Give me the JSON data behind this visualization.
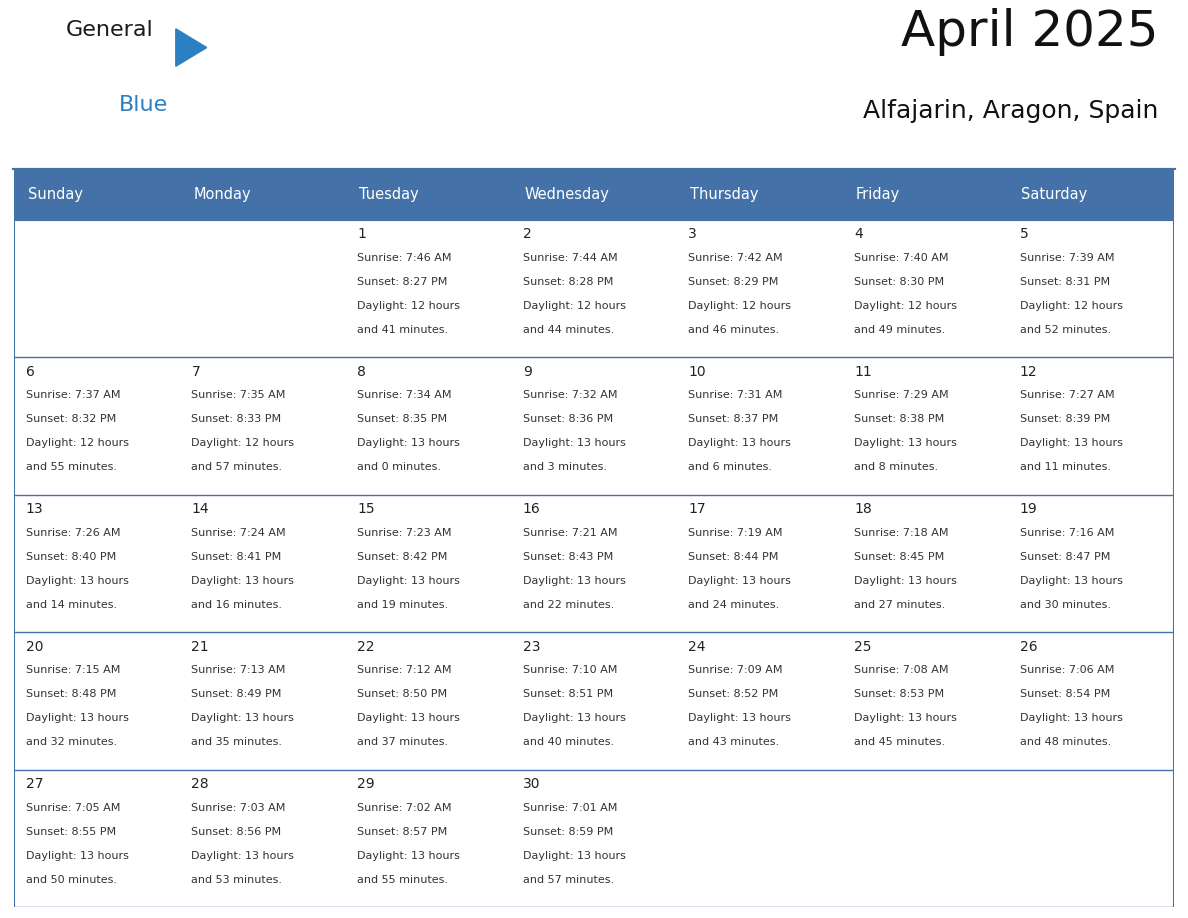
{
  "title": "April 2025",
  "subtitle": "Alfajarin, Aragon, Spain",
  "days_of_week": [
    "Sunday",
    "Monday",
    "Tuesday",
    "Wednesday",
    "Thursday",
    "Friday",
    "Saturday"
  ],
  "header_bg": "#4472A8",
  "header_text": "#FFFFFF",
  "border_color": "#4472A8",
  "text_color": "#333333",
  "calendar_data": [
    [
      {
        "day": "",
        "sunrise": "",
        "sunset": "",
        "daylight": ""
      },
      {
        "day": "",
        "sunrise": "",
        "sunset": "",
        "daylight": ""
      },
      {
        "day": "1",
        "sunrise": "7:46 AM",
        "sunset": "8:27 PM",
        "daylight_h": "12 hours",
        "daylight_m": "and 41 minutes."
      },
      {
        "day": "2",
        "sunrise": "7:44 AM",
        "sunset": "8:28 PM",
        "daylight_h": "12 hours",
        "daylight_m": "and 44 minutes."
      },
      {
        "day": "3",
        "sunrise": "7:42 AM",
        "sunset": "8:29 PM",
        "daylight_h": "12 hours",
        "daylight_m": "and 46 minutes."
      },
      {
        "day": "4",
        "sunrise": "7:40 AM",
        "sunset": "8:30 PM",
        "daylight_h": "12 hours",
        "daylight_m": "and 49 minutes."
      },
      {
        "day": "5",
        "sunrise": "7:39 AM",
        "sunset": "8:31 PM",
        "daylight_h": "12 hours",
        "daylight_m": "and 52 minutes."
      }
    ],
    [
      {
        "day": "6",
        "sunrise": "7:37 AM",
        "sunset": "8:32 PM",
        "daylight_h": "12 hours",
        "daylight_m": "and 55 minutes."
      },
      {
        "day": "7",
        "sunrise": "7:35 AM",
        "sunset": "8:33 PM",
        "daylight_h": "12 hours",
        "daylight_m": "and 57 minutes."
      },
      {
        "day": "8",
        "sunrise": "7:34 AM",
        "sunset": "8:35 PM",
        "daylight_h": "13 hours",
        "daylight_m": "and 0 minutes."
      },
      {
        "day": "9",
        "sunrise": "7:32 AM",
        "sunset": "8:36 PM",
        "daylight_h": "13 hours",
        "daylight_m": "and 3 minutes."
      },
      {
        "day": "10",
        "sunrise": "7:31 AM",
        "sunset": "8:37 PM",
        "daylight_h": "13 hours",
        "daylight_m": "and 6 minutes."
      },
      {
        "day": "11",
        "sunrise": "7:29 AM",
        "sunset": "8:38 PM",
        "daylight_h": "13 hours",
        "daylight_m": "and 8 minutes."
      },
      {
        "day": "12",
        "sunrise": "7:27 AM",
        "sunset": "8:39 PM",
        "daylight_h": "13 hours",
        "daylight_m": "and 11 minutes."
      }
    ],
    [
      {
        "day": "13",
        "sunrise": "7:26 AM",
        "sunset": "8:40 PM",
        "daylight_h": "13 hours",
        "daylight_m": "and 14 minutes."
      },
      {
        "day": "14",
        "sunrise": "7:24 AM",
        "sunset": "8:41 PM",
        "daylight_h": "13 hours",
        "daylight_m": "and 16 minutes."
      },
      {
        "day": "15",
        "sunrise": "7:23 AM",
        "sunset": "8:42 PM",
        "daylight_h": "13 hours",
        "daylight_m": "and 19 minutes."
      },
      {
        "day": "16",
        "sunrise": "7:21 AM",
        "sunset": "8:43 PM",
        "daylight_h": "13 hours",
        "daylight_m": "and 22 minutes."
      },
      {
        "day": "17",
        "sunrise": "7:19 AM",
        "sunset": "8:44 PM",
        "daylight_h": "13 hours",
        "daylight_m": "and 24 minutes."
      },
      {
        "day": "18",
        "sunrise": "7:18 AM",
        "sunset": "8:45 PM",
        "daylight_h": "13 hours",
        "daylight_m": "and 27 minutes."
      },
      {
        "day": "19",
        "sunrise": "7:16 AM",
        "sunset": "8:47 PM",
        "daylight_h": "13 hours",
        "daylight_m": "and 30 minutes."
      }
    ],
    [
      {
        "day": "20",
        "sunrise": "7:15 AM",
        "sunset": "8:48 PM",
        "daylight_h": "13 hours",
        "daylight_m": "and 32 minutes."
      },
      {
        "day": "21",
        "sunrise": "7:13 AM",
        "sunset": "8:49 PM",
        "daylight_h": "13 hours",
        "daylight_m": "and 35 minutes."
      },
      {
        "day": "22",
        "sunrise": "7:12 AM",
        "sunset": "8:50 PM",
        "daylight_h": "13 hours",
        "daylight_m": "and 37 minutes."
      },
      {
        "day": "23",
        "sunrise": "7:10 AM",
        "sunset": "8:51 PM",
        "daylight_h": "13 hours",
        "daylight_m": "and 40 minutes."
      },
      {
        "day": "24",
        "sunrise": "7:09 AM",
        "sunset": "8:52 PM",
        "daylight_h": "13 hours",
        "daylight_m": "and 43 minutes."
      },
      {
        "day": "25",
        "sunrise": "7:08 AM",
        "sunset": "8:53 PM",
        "daylight_h": "13 hours",
        "daylight_m": "and 45 minutes."
      },
      {
        "day": "26",
        "sunrise": "7:06 AM",
        "sunset": "8:54 PM",
        "daylight_h": "13 hours",
        "daylight_m": "and 48 minutes."
      }
    ],
    [
      {
        "day": "27",
        "sunrise": "7:05 AM",
        "sunset": "8:55 PM",
        "daylight_h": "13 hours",
        "daylight_m": "and 50 minutes."
      },
      {
        "day": "28",
        "sunrise": "7:03 AM",
        "sunset": "8:56 PM",
        "daylight_h": "13 hours",
        "daylight_m": "and 53 minutes."
      },
      {
        "day": "29",
        "sunrise": "7:02 AM",
        "sunset": "8:57 PM",
        "daylight_h": "13 hours",
        "daylight_m": "and 55 minutes."
      },
      {
        "day": "30",
        "sunrise": "7:01 AM",
        "sunset": "8:59 PM",
        "daylight_h": "13 hours",
        "daylight_m": "and 57 minutes."
      },
      {
        "day": "",
        "sunrise": "",
        "sunset": "",
        "daylight_h": "",
        "daylight_m": ""
      },
      {
        "day": "",
        "sunrise": "",
        "sunset": "",
        "daylight_h": "",
        "daylight_m": ""
      },
      {
        "day": "",
        "sunrise": "",
        "sunset": "",
        "daylight_h": "",
        "daylight_m": ""
      }
    ]
  ],
  "logo_color_general": "#1a1a1a",
  "logo_color_blue": "#2C7FC0",
  "logo_triangle_color": "#2C7FC0",
  "title_fontsize": 36,
  "subtitle_fontsize": 18,
  "header_fontsize": 10.5,
  "day_num_fontsize": 10,
  "cell_text_fontsize": 8
}
